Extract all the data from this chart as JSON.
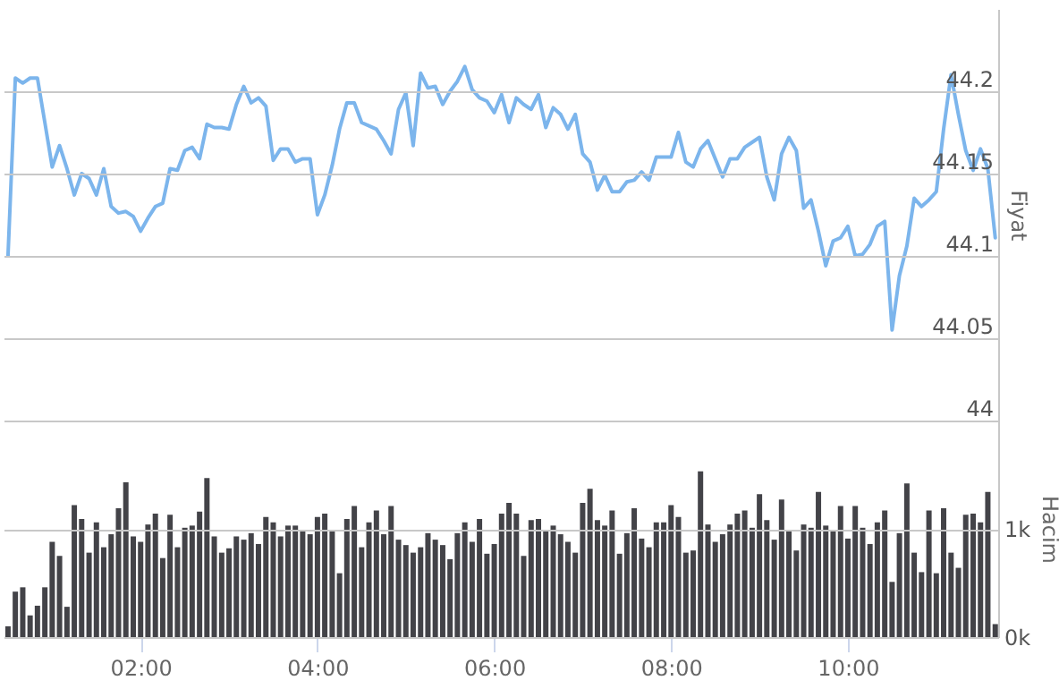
{
  "chart_data": [
    {
      "type": "line",
      "ylabel": "Fiyat",
      "x": [
        0.5,
        0.583,
        0.667,
        0.75,
        0.833,
        0.917,
        1,
        1.083,
        1.167,
        1.25,
        1.333,
        1.417,
        1.5,
        1.583,
        1.667,
        1.75,
        1.833,
        1.917,
        2,
        2.083,
        2.167,
        2.25,
        2.333,
        2.417,
        2.5,
        2.583,
        2.667,
        2.75,
        2.833,
        2.917,
        3,
        3.083,
        3.167,
        3.25,
        3.333,
        3.417,
        3.5,
        3.583,
        3.667,
        3.75,
        3.833,
        3.917,
        4,
        4.083,
        4.167,
        4.25,
        4.333,
        4.417,
        4.5,
        4.583,
        4.667,
        4.75,
        4.833,
        4.917,
        5,
        5.083,
        5.167,
        5.25,
        5.333,
        5.417,
        5.5,
        5.583,
        5.667,
        5.75,
        5.833,
        5.917,
        6,
        6.083,
        6.167,
        6.25,
        6.333,
        6.417,
        6.5,
        6.583,
        6.667,
        6.75,
        6.833,
        6.917,
        7,
        7.083,
        7.167,
        7.25,
        7.333,
        7.417,
        7.5,
        7.583,
        7.667,
        7.75,
        7.833,
        7.917,
        8,
        8.083,
        8.167,
        8.25,
        8.333,
        8.417,
        8.5,
        8.583,
        8.667,
        8.75,
        8.833,
        8.917,
        9,
        9.083,
        9.167,
        9.25,
        9.333,
        9.417,
        9.5,
        9.583,
        9.667,
        9.75,
        9.833,
        9.917,
        10,
        10.083,
        10.167,
        10.25,
        10.333,
        10.417,
        10.5,
        10.583,
        10.667,
        10.75,
        10.833,
        10.917,
        11,
        11.083,
        11.167,
        11.25,
        11.333,
        11.417,
        11.5,
        11.583,
        11.667
      ],
      "series": [
        {
          "color": "#7cb5ec",
          "values": [
            44.1,
            44.208,
            44.205,
            44.208,
            44.208,
            44.181,
            44.154,
            44.167,
            44.153,
            44.137,
            44.15,
            44.147,
            44.137,
            44.153,
            44.13,
            44.126,
            44.127,
            44.124,
            44.115,
            44.123,
            44.13,
            44.132,
            44.153,
            44.152,
            44.164,
            44.166,
            44.159,
            44.18,
            44.178,
            44.178,
            44.177,
            44.192,
            44.203,
            44.193,
            44.196,
            44.191,
            44.158,
            44.165,
            44.165,
            44.157,
            44.159,
            44.159,
            44.125,
            44.137,
            44.155,
            44.177,
            44.193,
            44.193,
            44.181,
            44.179,
            44.177,
            44.17,
            44.162,
            44.189,
            44.199,
            44.167,
            44.211,
            44.202,
            44.203,
            44.192,
            44.2,
            44.206,
            44.215,
            44.201,
            44.196,
            44.194,
            44.187,
            44.198,
            44.181,
            44.196,
            44.192,
            44.189,
            44.198,
            44.178,
            44.19,
            44.186,
            44.177,
            44.186,
            44.162,
            44.157,
            44.14,
            44.149,
            44.139,
            44.139,
            44.145,
            44.146,
            44.151,
            44.146,
            44.16,
            44.16,
            44.16,
            44.175,
            44.157,
            44.154,
            44.165,
            44.17,
            44.159,
            44.148,
            44.159,
            44.159,
            44.166,
            44.169,
            44.172,
            44.148,
            44.134,
            44.162,
            44.172,
            44.164,
            44.129,
            44.134,
            44.115,
            44.094,
            44.109,
            44.111,
            44.118,
            44.1,
            44.101,
            44.107,
            44.118,
            44.121,
            44.055,
            44.088,
            44.106,
            44.135,
            44.13,
            44.134,
            44.139,
            44.177,
            44.21,
            44.186,
            44.164,
            44.152,
            44.165,
            44.153,
            44.111
          ]
        }
      ],
      "xlim": [
        0.45,
        11.7
      ],
      "ylim": [
        44,
        44.25
      ],
      "yticks": [
        44,
        44.05,
        44.1,
        44.15,
        44.2
      ],
      "grid": "y",
      "tick_labels": "y"
    },
    {
      "type": "bar",
      "ylabel": "Hacim",
      "x": [
        0.5,
        0.583,
        0.667,
        0.75,
        0.833,
        0.917,
        1,
        1.083,
        1.167,
        1.25,
        1.333,
        1.417,
        1.5,
        1.583,
        1.667,
        1.75,
        1.833,
        1.917,
        2,
        2.083,
        2.167,
        2.25,
        2.333,
        2.417,
        2.5,
        2.583,
        2.667,
        2.75,
        2.833,
        2.917,
        3,
        3.083,
        3.167,
        3.25,
        3.333,
        3.417,
        3.5,
        3.583,
        3.667,
        3.75,
        3.833,
        3.917,
        4,
        4.083,
        4.167,
        4.25,
        4.333,
        4.417,
        4.5,
        4.583,
        4.667,
        4.75,
        4.833,
        4.917,
        5,
        5.083,
        5.167,
        5.25,
        5.333,
        5.417,
        5.5,
        5.583,
        5.667,
        5.75,
        5.833,
        5.917,
        6,
        6.083,
        6.167,
        6.25,
        6.333,
        6.417,
        6.5,
        6.583,
        6.667,
        6.75,
        6.833,
        6.917,
        7,
        7.083,
        7.167,
        7.25,
        7.333,
        7.417,
        7.5,
        7.583,
        7.667,
        7.75,
        7.833,
        7.917,
        8,
        8.083,
        8.167,
        8.25,
        8.333,
        8.417,
        8.5,
        8.583,
        8.667,
        8.75,
        8.833,
        8.917,
        9,
        9.083,
        9.167,
        9.25,
        9.333,
        9.417,
        9.5,
        9.583,
        9.667,
        9.75,
        9.833,
        9.917,
        10,
        10.083,
        10.167,
        10.25,
        10.333,
        10.417,
        10.5,
        10.583,
        10.667,
        10.75,
        10.833,
        10.917,
        11,
        11.083,
        11.167,
        11.25,
        11.333,
        11.417,
        11.5,
        11.583,
        11.667
      ],
      "color": "#434348",
      "values": [
        0.1,
        0.42,
        0.46,
        0.2,
        0.29,
        0.46,
        0.88,
        0.75,
        0.28,
        1.22,
        1.09,
        0.78,
        1.06,
        0.83,
        0.95,
        1.19,
        1.43,
        0.93,
        0.88,
        1.04,
        1.14,
        0.73,
        1.13,
        0.83,
        1.01,
        1.03,
        1.16,
        1.47,
        0.93,
        0.78,
        0.82,
        0.93,
        0.9,
        0.96,
        0.86,
        1.11,
        1.06,
        0.93,
        1.03,
        1.03,
        0.98,
        0.95,
        1.11,
        1.14,
        0.99,
        0.59,
        1.09,
        1.21,
        0.83,
        1.06,
        1.17,
        0.95,
        1.21,
        0.9,
        0.85,
        0.78,
        0.83,
        0.96,
        0.9,
        0.85,
        0.72,
        0.96,
        1.06,
        0.88,
        1.09,
        0.77,
        0.86,
        1.14,
        1.24,
        1.14,
        0.75,
        1.08,
        1.09,
        0.98,
        1.03,
        0.95,
        0.88,
        0.78,
        1.24,
        1.37,
        1.08,
        1.03,
        1.17,
        0.77,
        0.96,
        1.19,
        0.91,
        0.83,
        1.06,
        1.06,
        1.22,
        1.11,
        0.78,
        0.8,
        1.53,
        1.04,
        0.88,
        0.95,
        1.04,
        1.14,
        1.17,
        1.01,
        1.32,
        1.08,
        0.9,
        1.27,
        0.99,
        0.8,
        1.04,
        1.01,
        1.34,
        1.03,
        0.99,
        1.21,
        0.91,
        1.21,
        1.01,
        0.86,
        1.06,
        1.17,
        0.51,
        0.96,
        1.42,
        0.78,
        0.6,
        1.17,
        0.59,
        1.19,
        0.78,
        0.64,
        1.13,
        1.14,
        1.06,
        1.34,
        0.12
      ],
      "xlim": [
        0.45,
        11.7
      ],
      "xticks": [
        {
          "value": 2,
          "label": "02:00"
        },
        {
          "value": 4,
          "label": "04:00"
        },
        {
          "value": 6,
          "label": "06:00"
        },
        {
          "value": 8,
          "label": "08:00"
        },
        {
          "value": 10,
          "label": "10:00"
        }
      ],
      "ylim": [
        0,
        2
      ],
      "yticks": [
        {
          "value": 0,
          "label": "0k"
        },
        {
          "value": 1,
          "label": "1k"
        }
      ],
      "grid": "y"
    }
  ]
}
